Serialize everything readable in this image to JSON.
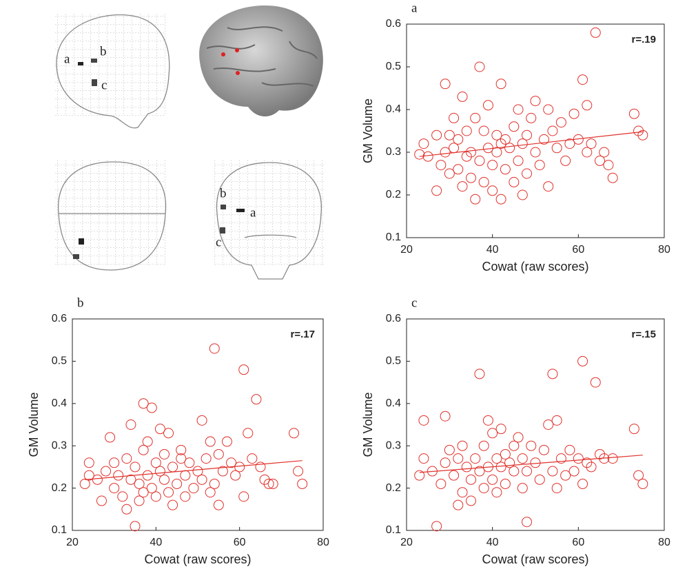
{
  "brain_labels": {
    "sagittal": [
      "a",
      "b",
      "c"
    ],
    "coronal": [
      "b",
      "a",
      "c"
    ]
  },
  "chart_data": [
    {
      "type": "scatter",
      "panel_label": "a",
      "annotation": "r=.19",
      "xlabel": "Cowat (raw scores)",
      "ylabel": "GM Volume",
      "color": "#e0302a",
      "xlim": [
        20,
        80
      ],
      "ylim": [
        0.1,
        0.6
      ],
      "xticks": [
        20,
        40,
        60,
        80
      ],
      "yticks": [
        0.1,
        0.2,
        0.3,
        0.4,
        0.5,
        0.6
      ],
      "x": [
        23,
        24,
        25,
        27,
        27,
        28,
        29,
        29,
        30,
        30,
        31,
        31,
        32,
        32,
        33,
        33,
        34,
        34,
        35,
        35,
        36,
        36,
        37,
        37,
        38,
        38,
        39,
        39,
        40,
        40,
        41,
        41,
        42,
        42,
        42,
        43,
        43,
        44,
        45,
        45,
        46,
        46,
        47,
        47,
        48,
        48,
        49,
        50,
        50,
        51,
        52,
        53,
        53,
        54,
        55,
        56,
        57,
        58,
        59,
        60,
        61,
        62,
        62,
        63,
        64,
        65,
        66,
        67,
        68,
        73,
        74,
        75
      ],
      "y": [
        0.295,
        0.32,
        0.29,
        0.21,
        0.34,
        0.27,
        0.46,
        0.3,
        0.25,
        0.34,
        0.38,
        0.31,
        0.33,
        0.26,
        0.43,
        0.22,
        0.29,
        0.35,
        0.24,
        0.3,
        0.19,
        0.38,
        0.5,
        0.28,
        0.35,
        0.23,
        0.41,
        0.31,
        0.27,
        0.21,
        0.34,
        0.3,
        0.46,
        0.19,
        0.32,
        0.26,
        0.33,
        0.31,
        0.36,
        0.23,
        0.28,
        0.4,
        0.2,
        0.32,
        0.34,
        0.25,
        0.38,
        0.3,
        0.42,
        0.27,
        0.33,
        0.4,
        0.22,
        0.35,
        0.31,
        0.37,
        0.28,
        0.32,
        0.39,
        0.33,
        0.47,
        0.41,
        0.3,
        0.32,
        0.58,
        0.28,
        0.3,
        0.27,
        0.24,
        0.39,
        0.35,
        0.34
      ],
      "fit": {
        "x": [
          23,
          75
        ],
        "y": [
          0.29,
          0.348
        ]
      }
    },
    {
      "type": "scatter",
      "panel_label": "b",
      "annotation": "r=.17",
      "xlabel": "Cowat (raw scores)",
      "ylabel": "GM Volume",
      "color": "#e0302a",
      "xlim": [
        20,
        80
      ],
      "ylim": [
        0.1,
        0.6
      ],
      "xticks": [
        20,
        40,
        60,
        80
      ],
      "yticks": [
        0.1,
        0.2,
        0.3,
        0.4,
        0.5,
        0.6
      ],
      "x": [
        23,
        24,
        24,
        26,
        27,
        28,
        29,
        30,
        30,
        31,
        32,
        33,
        33,
        34,
        34,
        35,
        35,
        36,
        36,
        37,
        37,
        37,
        38,
        38,
        39,
        39,
        40,
        40,
        41,
        41,
        42,
        42,
        43,
        43,
        44,
        44,
        45,
        46,
        46,
        47,
        47,
        48,
        49,
        50,
        51,
        51,
        52,
        53,
        53,
        54,
        54,
        55,
        55,
        56,
        57,
        58,
        59,
        60,
        61,
        61,
        62,
        63,
        64,
        65,
        66,
        67,
        68,
        73,
        74,
        75
      ],
      "y": [
        0.21,
        0.23,
        0.26,
        0.22,
        0.17,
        0.24,
        0.32,
        0.26,
        0.2,
        0.23,
        0.18,
        0.27,
        0.15,
        0.22,
        0.35,
        0.11,
        0.25,
        0.17,
        0.21,
        0.4,
        0.29,
        0.19,
        0.23,
        0.31,
        0.39,
        0.2,
        0.26,
        0.18,
        0.24,
        0.34,
        0.22,
        0.28,
        0.33,
        0.19,
        0.25,
        0.16,
        0.21,
        0.27,
        0.29,
        0.23,
        0.18,
        0.26,
        0.2,
        0.24,
        0.36,
        0.22,
        0.27,
        0.31,
        0.19,
        0.53,
        0.21,
        0.28,
        0.16,
        0.24,
        0.31,
        0.26,
        0.23,
        0.25,
        0.48,
        0.18,
        0.33,
        0.27,
        0.41,
        0.25,
        0.22,
        0.21,
        0.21,
        0.33,
        0.24,
        0.21
      ],
      "fit": {
        "x": [
          23,
          75
        ],
        "y": [
          0.22,
          0.265
        ]
      }
    },
    {
      "type": "scatter",
      "panel_label": "c",
      "annotation": "r=.15",
      "xlabel": "Cowat (raw scores)",
      "ylabel": "GM Volume",
      "color": "#e0302a",
      "xlim": [
        20,
        80
      ],
      "ylim": [
        0.1,
        0.6
      ],
      "xticks": [
        20,
        40,
        60,
        80
      ],
      "yticks": [
        0.1,
        0.2,
        0.3,
        0.4,
        0.5,
        0.6
      ],
      "x": [
        23,
        24,
        24,
        26,
        27,
        28,
        29,
        29,
        30,
        31,
        32,
        32,
        33,
        33,
        34,
        35,
        35,
        36,
        37,
        37,
        38,
        38,
        39,
        39,
        40,
        40,
        41,
        41,
        42,
        42,
        43,
        43,
        44,
        45,
        45,
        46,
        47,
        47,
        48,
        48,
        49,
        50,
        51,
        52,
        53,
        54,
        54,
        55,
        55,
        56,
        57,
        58,
        59,
        60,
        61,
        61,
        62,
        63,
        64,
        65,
        66,
        68,
        73,
        74,
        75
      ],
      "y": [
        0.23,
        0.36,
        0.27,
        0.24,
        0.11,
        0.21,
        0.37,
        0.26,
        0.29,
        0.23,
        0.16,
        0.27,
        0.3,
        0.19,
        0.25,
        0.22,
        0.17,
        0.27,
        0.47,
        0.24,
        0.3,
        0.2,
        0.36,
        0.25,
        0.22,
        0.33,
        0.27,
        0.19,
        0.34,
        0.25,
        0.28,
        0.21,
        0.26,
        0.3,
        0.24,
        0.32,
        0.2,
        0.27,
        0.12,
        0.24,
        0.3,
        0.26,
        0.22,
        0.29,
        0.35,
        0.47,
        0.24,
        0.36,
        0.2,
        0.27,
        0.23,
        0.29,
        0.24,
        0.27,
        0.5,
        0.21,
        0.26,
        0.25,
        0.45,
        0.28,
        0.27,
        0.27,
        0.34,
        0.23,
        0.21
      ],
      "fit": {
        "x": [
          23,
          75
        ],
        "y": [
          0.237,
          0.278
        ]
      }
    }
  ]
}
